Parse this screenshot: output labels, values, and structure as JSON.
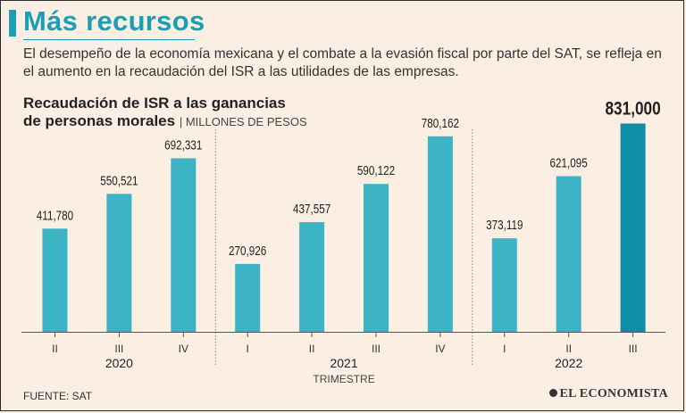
{
  "header": {
    "title": "Más recursos",
    "description": "El desempeño de la economía mexicana y el combate a la evasión fiscal por parte del SAT, se refleja en el aumento en la recaudación del ISR a las utilidades de las empresas."
  },
  "colors": {
    "accent": "#1a9fb4",
    "bar": "#3db4c6",
    "highlight": "#0e8fa5"
  },
  "chart_data": {
    "type": "bar",
    "title_line1": "Recaudación de ISR a las ganancias",
    "title_line2": "de personas morales",
    "unit": "MILLONES DE PESOS",
    "xlabel": "TRIMESTRE",
    "categories": [
      "II",
      "III",
      "IV",
      "I",
      "II",
      "III",
      "IV",
      "I",
      "II",
      "III"
    ],
    "years": [
      "2020",
      "2020",
      "2020",
      "2021",
      "2021",
      "2021",
      "2021",
      "2022",
      "2022",
      "2022"
    ],
    "year_groups": [
      {
        "year": "2020",
        "start": 0,
        "end": 2
      },
      {
        "year": "2021",
        "start": 3,
        "end": 6
      },
      {
        "year": "2022",
        "start": 7,
        "end": 9
      }
    ],
    "values": [
      411780,
      550521,
      692331,
      270926,
      437557,
      590122,
      780162,
      373119,
      621095,
      831000
    ],
    "labels": [
      "411,780",
      "550,521",
      "692,331",
      "270,926",
      "437,557",
      "590,122",
      "780,162",
      "373,119",
      "621,095",
      "831,000"
    ],
    "highlight_index": 9,
    "ylim": [
      0,
      900000
    ]
  },
  "footer": {
    "source": "FUENTE: SAT",
    "brand": "EL ECONOMISTA"
  }
}
